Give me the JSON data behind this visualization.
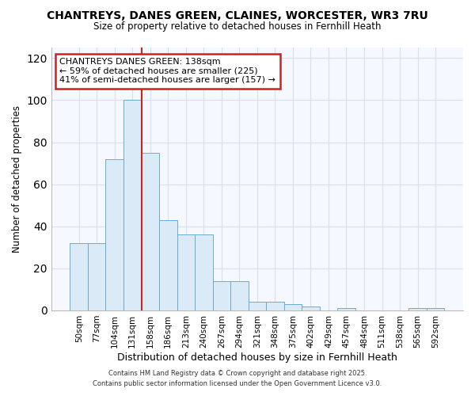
{
  "title_line1": "CHANTREYS, DANES GREEN, CLAINES, WORCESTER, WR3 7RU",
  "title_line2": "Size of property relative to detached houses in Fernhill Heath",
  "xlabel": "Distribution of detached houses by size in Fernhill Heath",
  "ylabel": "Number of detached properties",
  "bar_labels": [
    "50sqm",
    "77sqm",
    "104sqm",
    "131sqm",
    "158sqm",
    "186sqm",
    "213sqm",
    "240sqm",
    "267sqm",
    "294sqm",
    "321sqm",
    "348sqm",
    "375sqm",
    "402sqm",
    "429sqm",
    "457sqm",
    "484sqm",
    "511sqm",
    "538sqm",
    "565sqm",
    "592sqm"
  ],
  "bar_values": [
    32,
    32,
    72,
    100,
    75,
    43,
    36,
    36,
    14,
    14,
    4,
    4,
    3,
    2,
    0,
    1,
    0,
    0,
    0,
    1,
    1
  ],
  "bar_color": "#daeaf7",
  "bar_edge_color": "#6aabd2",
  "red_line_x": 3.5,
  "red_line_color": "#cc2222",
  "annotation_title": "CHANTREYS DANES GREEN: 138sqm",
  "annotation_line1": "← 59% of detached houses are smaller (225)",
  "annotation_line2": "41% of semi-detached houses are larger (157) →",
  "annotation_box_facecolor": "#ffffff",
  "annotation_box_edgecolor": "#cc2222",
  "footer_line1": "Contains HM Land Registry data © Crown copyright and database right 2025.",
  "footer_line2": "Contains public sector information licensed under the Open Government Licence v3.0.",
  "ylim": [
    0,
    125
  ],
  "yticks": [
    0,
    20,
    40,
    60,
    80,
    100,
    120
  ],
  "fig_facecolor": "#ffffff",
  "axes_facecolor": "#f5f8ff",
  "grid_color": "#d8e0ec",
  "spine_color": "#aaaaaa"
}
